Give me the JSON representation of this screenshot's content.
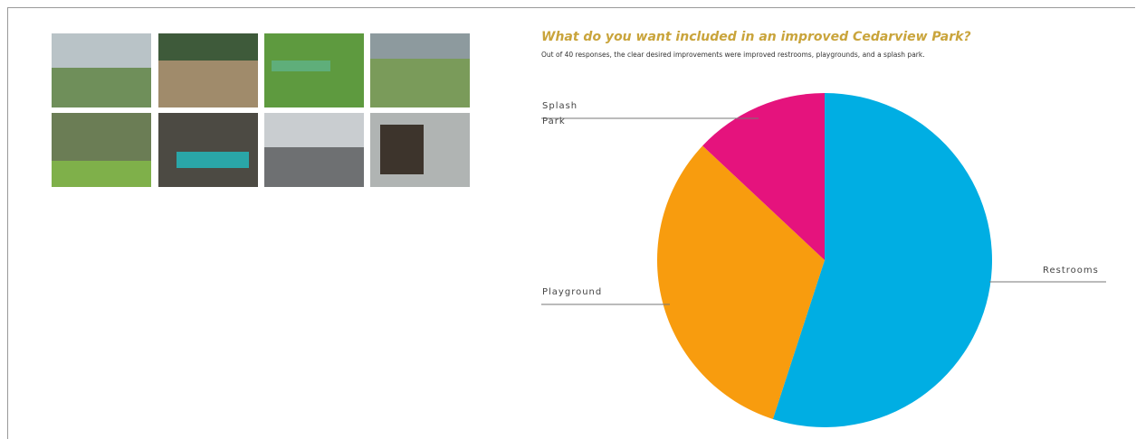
{
  "chart_data": {
    "type": "pie",
    "title": "What do you want included in an improved Cedarview Park?",
    "subtitle": "Out of 40 responses, the clear desired improvements were improved restrooms, playgrounds, and a splash park.",
    "categories": [
      "Restrooms",
      "Playground",
      "Splash Park"
    ],
    "values": [
      55,
      32,
      13
    ],
    "colors": [
      "#00aee3",
      "#f89c0e",
      "#e5137d"
    ]
  }
}
